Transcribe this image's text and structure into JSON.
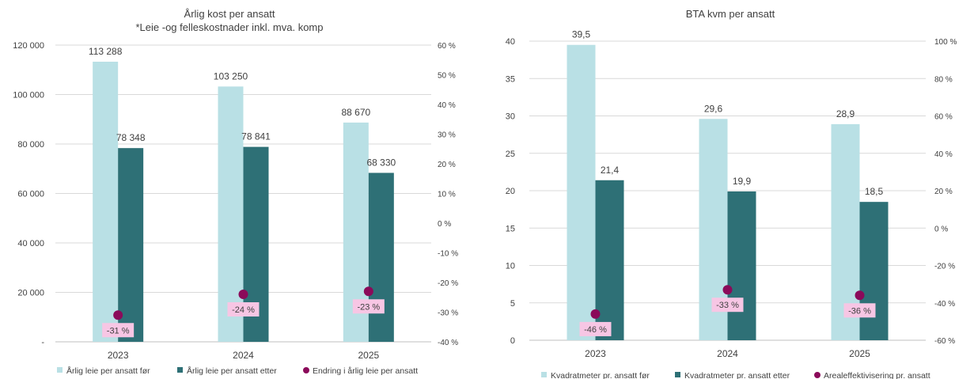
{
  "chart_data": [
    {
      "type": "bar",
      "title": "Årlig kost per ansatt",
      "subtitle": "*Leie -og felleskostnader inkl. mva. komp",
      "categories": [
        "2023",
        "2024",
        "2025"
      ],
      "series": [
        {
          "name": "Årlig leie per ansatt før",
          "type": "bar",
          "axis": "left",
          "color": "#b9e0e5",
          "values": [
            113288,
            103250,
            88670
          ],
          "labels": [
            "113 288",
            "103 250",
            "88 670"
          ]
        },
        {
          "name": "Årlig leie per ansatt etter",
          "type": "bar",
          "axis": "left",
          "color": "#2e7076",
          "values": [
            78348,
            78841,
            68330
          ],
          "labels": [
            "78 348",
            "78 841",
            "68 330"
          ]
        },
        {
          "name": "Endring i årlig leie per ansatt",
          "type": "scatter",
          "axis": "right",
          "color": "#8b0a5a",
          "values": [
            -31,
            -24,
            -23
          ],
          "labels": [
            "-31 %",
            "-24 %",
            "-23 %"
          ]
        }
      ],
      "y_left": {
        "min": 0,
        "max": 120000,
        "ticks": [
          0,
          20000,
          40000,
          60000,
          80000,
          100000,
          120000
        ],
        "tick_labels": [
          "-",
          "20 000",
          "40 000",
          "60 000",
          "80 000",
          "100 000",
          "120 000"
        ]
      },
      "y_right": {
        "min": -40,
        "max": 60,
        "ticks": [
          -40,
          -30,
          -20,
          -10,
          0,
          10,
          20,
          30,
          40,
          50,
          60
        ],
        "tick_labels": [
          "-40 %",
          "-30 %",
          "-20 %",
          "-10 %",
          "0 %",
          "10 %",
          "20 %",
          "30 %",
          "40 %",
          "50 %",
          "60 %"
        ]
      },
      "grid": true,
      "legend": "bottom",
      "label_bg": "#f7c6e4"
    },
    {
      "type": "bar",
      "title": "BTA kvm per ansatt",
      "categories": [
        "2023",
        "2024",
        "2025"
      ],
      "series": [
        {
          "name": "Kvadratmeter pr. ansatt før",
          "type": "bar",
          "axis": "left",
          "color": "#b9e0e5",
          "values": [
            39.5,
            29.6,
            28.9
          ],
          "labels": [
            "39,5",
            "29,6",
            "28,9"
          ]
        },
        {
          "name": "Kvadratmeter pr. ansatt etter",
          "type": "bar",
          "axis": "left",
          "color": "#2e7076",
          "values": [
            21.4,
            19.9,
            18.5
          ],
          "labels": [
            "21,4",
            "19,9",
            "18,5"
          ]
        },
        {
          "name": "Arealeffektivisering pr. ansatt",
          "type": "scatter",
          "axis": "right",
          "color": "#8b0a5a",
          "values": [
            -46,
            -33,
            -36
          ],
          "labels": [
            "-46 %",
            "-33 %",
            "-36 %"
          ]
        }
      ],
      "y_left": {
        "min": 0,
        "max": 40,
        "ticks": [
          0,
          5,
          10,
          15,
          20,
          25,
          30,
          35,
          40
        ],
        "tick_labels": [
          "0",
          "5",
          "10",
          "15",
          "20",
          "25",
          "30",
          "35",
          "40"
        ]
      },
      "y_right": {
        "min": -60,
        "max": 100,
        "ticks": [
          -60,
          -40,
          -20,
          0,
          20,
          40,
          60,
          80,
          100
        ],
        "tick_labels": [
          "-60 %",
          "-40 %",
          "-20 %",
          "0 %",
          "20 %",
          "40 %",
          "60 %",
          "80 %",
          "100 %"
        ]
      },
      "grid": true,
      "legend": "bottom",
      "label_bg": "#f7c6e4"
    }
  ]
}
